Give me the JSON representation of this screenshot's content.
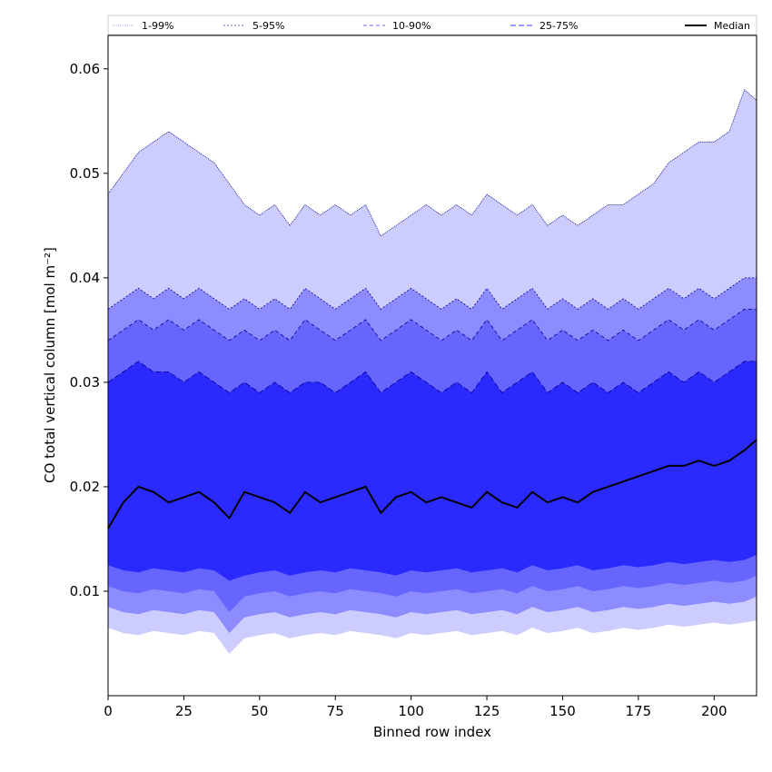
{
  "chart_data": {
    "type": "area",
    "xlabel": "Binned row index",
    "ylabel": "CO total vertical column [mol m⁻²]",
    "xlim": [
      0,
      214
    ],
    "ylim": [
      0.0,
      0.0632
    ],
    "xticks": [
      0,
      25,
      50,
      75,
      100,
      125,
      150,
      175,
      200
    ],
    "yticks": [
      0.01,
      0.02,
      0.03,
      0.04,
      0.05,
      0.06
    ],
    "legend_position": "top",
    "legend": [
      {
        "label": "1-99%",
        "color": "#ccccff"
      },
      {
        "label": "5-95%",
        "color": "#8c8cff"
      },
      {
        "label": "10-90%",
        "color": "#6666ff"
      },
      {
        "label": "25-75%",
        "color": "#2a2aff"
      },
      {
        "label": "Median",
        "color": "#000000"
      }
    ],
    "x": [
      0,
      5,
      10,
      15,
      20,
      25,
      30,
      35,
      40,
      45,
      50,
      55,
      60,
      65,
      70,
      75,
      80,
      85,
      90,
      95,
      100,
      105,
      110,
      115,
      120,
      125,
      130,
      135,
      140,
      145,
      150,
      155,
      160,
      165,
      170,
      175,
      180,
      185,
      190,
      195,
      200,
      205,
      210,
      214
    ],
    "bands": [
      {
        "name": "1-99%",
        "color": "#ccccff",
        "lower": [
          0.0065,
          0.006,
          0.0058,
          0.0062,
          0.006,
          0.0058,
          0.0062,
          0.006,
          0.004,
          0.0055,
          0.0058,
          0.006,
          0.0055,
          0.0058,
          0.006,
          0.0058,
          0.0062,
          0.006,
          0.0058,
          0.0055,
          0.006,
          0.0058,
          0.006,
          0.0062,
          0.0058,
          0.006,
          0.0062,
          0.0058,
          0.0065,
          0.006,
          0.0062,
          0.0065,
          0.006,
          0.0062,
          0.0065,
          0.0063,
          0.0065,
          0.0068,
          0.0066,
          0.0068,
          0.007,
          0.0068,
          0.007,
          0.0072
        ],
        "upper": [
          0.048,
          0.05,
          0.052,
          0.053,
          0.054,
          0.053,
          0.052,
          0.051,
          0.049,
          0.047,
          0.046,
          0.047,
          0.045,
          0.047,
          0.046,
          0.047,
          0.046,
          0.047,
          0.044,
          0.045,
          0.046,
          0.047,
          0.046,
          0.047,
          0.046,
          0.048,
          0.047,
          0.046,
          0.047,
          0.045,
          0.046,
          0.045,
          0.046,
          0.047,
          0.047,
          0.048,
          0.049,
          0.051,
          0.052,
          0.053,
          0.053,
          0.054,
          0.058,
          0.057
        ]
      },
      {
        "name": "5-95%",
        "color": "#8c8cff",
        "lower": [
          0.0085,
          0.008,
          0.0078,
          0.0082,
          0.008,
          0.0078,
          0.0082,
          0.008,
          0.006,
          0.0075,
          0.0078,
          0.008,
          0.0075,
          0.0078,
          0.008,
          0.0078,
          0.0082,
          0.008,
          0.0078,
          0.0075,
          0.008,
          0.0078,
          0.008,
          0.0082,
          0.0078,
          0.008,
          0.0082,
          0.0078,
          0.0085,
          0.008,
          0.0082,
          0.0085,
          0.008,
          0.0082,
          0.0085,
          0.0083,
          0.0085,
          0.0088,
          0.0086,
          0.0088,
          0.009,
          0.0088,
          0.009,
          0.0095
        ],
        "upper": [
          0.037,
          0.038,
          0.039,
          0.038,
          0.039,
          0.038,
          0.039,
          0.038,
          0.037,
          0.038,
          0.037,
          0.038,
          0.037,
          0.039,
          0.038,
          0.037,
          0.038,
          0.039,
          0.037,
          0.038,
          0.039,
          0.038,
          0.037,
          0.038,
          0.037,
          0.039,
          0.037,
          0.038,
          0.039,
          0.037,
          0.038,
          0.037,
          0.038,
          0.037,
          0.038,
          0.037,
          0.038,
          0.039,
          0.038,
          0.039,
          0.038,
          0.039,
          0.04,
          0.04
        ]
      },
      {
        "name": "10-90%",
        "color": "#6666ff",
        "lower": [
          0.0105,
          0.01,
          0.0098,
          0.0102,
          0.01,
          0.0098,
          0.0102,
          0.01,
          0.008,
          0.0095,
          0.0098,
          0.01,
          0.0095,
          0.0098,
          0.01,
          0.0098,
          0.0102,
          0.01,
          0.0098,
          0.0095,
          0.01,
          0.0098,
          0.01,
          0.0102,
          0.0098,
          0.01,
          0.0102,
          0.0098,
          0.0105,
          0.01,
          0.0102,
          0.0105,
          0.01,
          0.0102,
          0.0105,
          0.0103,
          0.0105,
          0.0108,
          0.0106,
          0.0108,
          0.011,
          0.0108,
          0.011,
          0.0115
        ],
        "upper": [
          0.034,
          0.035,
          0.036,
          0.035,
          0.036,
          0.035,
          0.036,
          0.035,
          0.034,
          0.035,
          0.034,
          0.035,
          0.034,
          0.036,
          0.035,
          0.034,
          0.035,
          0.036,
          0.034,
          0.035,
          0.036,
          0.035,
          0.034,
          0.035,
          0.034,
          0.036,
          0.034,
          0.035,
          0.036,
          0.034,
          0.035,
          0.034,
          0.035,
          0.034,
          0.035,
          0.034,
          0.035,
          0.036,
          0.035,
          0.036,
          0.035,
          0.036,
          0.037,
          0.037
        ]
      },
      {
        "name": "25-75%",
        "color": "#2a2aff",
        "lower": [
          0.0125,
          0.012,
          0.0118,
          0.0122,
          0.012,
          0.0118,
          0.0122,
          0.012,
          0.011,
          0.0115,
          0.0118,
          0.012,
          0.0115,
          0.0118,
          0.012,
          0.0118,
          0.0122,
          0.012,
          0.0118,
          0.0115,
          0.012,
          0.0118,
          0.012,
          0.0122,
          0.0118,
          0.012,
          0.0122,
          0.0118,
          0.0125,
          0.012,
          0.0122,
          0.0125,
          0.012,
          0.0122,
          0.0125,
          0.0123,
          0.0125,
          0.0128,
          0.0126,
          0.0128,
          0.013,
          0.0128,
          0.013,
          0.0135
        ],
        "upper": [
          0.03,
          0.031,
          0.032,
          0.031,
          0.031,
          0.03,
          0.031,
          0.03,
          0.029,
          0.03,
          0.029,
          0.03,
          0.029,
          0.03,
          0.03,
          0.029,
          0.03,
          0.031,
          0.029,
          0.03,
          0.031,
          0.03,
          0.029,
          0.03,
          0.029,
          0.031,
          0.029,
          0.03,
          0.031,
          0.029,
          0.03,
          0.029,
          0.03,
          0.029,
          0.03,
          0.029,
          0.03,
          0.031,
          0.03,
          0.031,
          0.03,
          0.031,
          0.032,
          0.032
        ]
      }
    ],
    "median": [
      0.016,
      0.0185,
      0.02,
      0.0195,
      0.0185,
      0.019,
      0.0195,
      0.0185,
      0.017,
      0.0195,
      0.019,
      0.0185,
      0.0175,
      0.0195,
      0.0185,
      0.019,
      0.0195,
      0.02,
      0.0175,
      0.019,
      0.0195,
      0.0185,
      0.019,
      0.0185,
      0.018,
      0.0195,
      0.0185,
      0.018,
      0.0195,
      0.0185,
      0.019,
      0.0185,
      0.0195,
      0.02,
      0.0205,
      0.021,
      0.0215,
      0.022,
      0.022,
      0.0225,
      0.022,
      0.0225,
      0.0235,
      0.0245
    ]
  }
}
